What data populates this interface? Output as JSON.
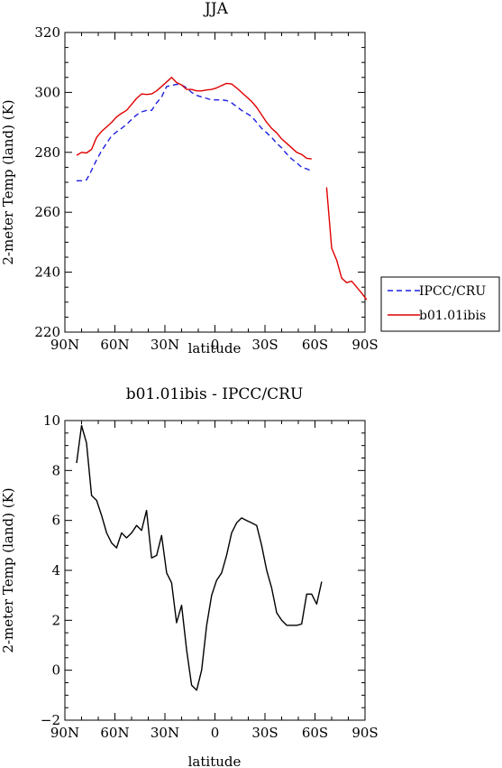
{
  "chart_data": [
    {
      "type": "line",
      "title": "JJA",
      "xlabel": "latitude",
      "ylabel": "2-meter Temp (land) (K)",
      "xlim": [
        90,
        -90
      ],
      "ylim": [
        220,
        320
      ],
      "x_ticks": [
        90,
        60,
        30,
        0,
        -30,
        -60,
        -90
      ],
      "x_tick_labels": [
        "90N",
        "60N",
        "30N",
        "0",
        "30S",
        "60S",
        "90S"
      ],
      "y_ticks": [
        220,
        240,
        260,
        280,
        300,
        320
      ],
      "y_tick_labels": [
        "220",
        "240",
        "260",
        "280",
        "300",
        "320"
      ],
      "legend_position": "right",
      "series": [
        {
          "name": "IPCC/CRU",
          "color": "#1f1fe0",
          "dash": "dashed",
          "segments": [
            [
              [
                83,
                270.5
              ],
              [
                80,
                270.5
              ],
              [
                77,
                270.8
              ],
              [
                74,
                274
              ],
              [
                71,
                277.5
              ],
              [
                68,
                280.5
              ],
              [
                65,
                283
              ],
              [
                62,
                285.5
              ],
              [
                59,
                286.8
              ],
              [
                56,
                288
              ],
              [
                53,
                289.3
              ],
              [
                50,
                291
              ],
              [
                47,
                292.5
              ],
              [
                44,
                293.5
              ],
              [
                41,
                294
              ],
              [
                38,
                294
              ],
              [
                35,
                296.5
              ],
              [
                32,
                298.5
              ],
              [
                29,
                302
              ],
              [
                26,
                302.3
              ],
              [
                23,
                302.7
              ],
              [
                20,
                302.5
              ],
              [
                17,
                301.5
              ],
              [
                14,
                300
              ],
              [
                11,
                299
              ],
              [
                8,
                298.5
              ],
              [
                5,
                298
              ],
              [
                2,
                297.5
              ],
              [
                -1,
                297.5
              ],
              [
                -4,
                297.5
              ],
              [
                -7,
                297.3
              ],
              [
                -10,
                296.5
              ],
              [
                -13,
                295.3
              ],
              [
                -16,
                294
              ],
              [
                -19,
                293
              ],
              [
                -22,
                292
              ],
              [
                -25,
                290
              ],
              [
                -28,
                288
              ],
              [
                -31,
                286.5
              ],
              [
                -34,
                285
              ],
              [
                -37,
                283
              ],
              [
                -40,
                281.5
              ],
              [
                -43,
                279.5
              ],
              [
                -46,
                277.8
              ],
              [
                -49,
                276.5
              ],
              [
                -52,
                275
              ],
              [
                -55,
                274.5
              ],
              [
                -58,
                273.8
              ]
            ]
          ]
        },
        {
          "name": "b01.01ibis",
          "color": "#e00000",
          "dash": "solid",
          "segments": [
            [
              [
                83,
                279
              ],
              [
                80,
                280
              ],
              [
                77,
                279.8
              ],
              [
                74,
                281
              ],
              [
                71,
                285
              ],
              [
                68,
                287
              ],
              [
                65,
                288.5
              ],
              [
                62,
                290
              ],
              [
                59,
                291.8
              ],
              [
                56,
                293
              ],
              [
                53,
                294
              ],
              [
                50,
                296
              ],
              [
                47,
                298
              ],
              [
                44,
                299.5
              ],
              [
                41,
                299.3
              ],
              [
                38,
                299.5
              ],
              [
                35,
                300.5
              ],
              [
                32,
                302
              ],
              [
                29,
                303.5
              ],
              [
                26,
                305
              ],
              [
                23,
                303.3
              ],
              [
                20,
                302.5
              ],
              [
                17,
                301
              ],
              [
                14,
                301
              ],
              [
                11,
                300.5
              ],
              [
                8,
                300.5
              ],
              [
                5,
                300.8
              ],
              [
                2,
                301
              ],
              [
                -1,
                301.5
              ],
              [
                -4,
                302.3
              ],
              [
                -7,
                303
              ],
              [
                -10,
                302.8
              ],
              [
                -13,
                301.5
              ],
              [
                -16,
                300
              ],
              [
                -19,
                298.5
              ],
              [
                -22,
                297
              ],
              [
                -25,
                295
              ],
              [
                -28,
                292.5
              ],
              [
                -31,
                290
              ],
              [
                -34,
                288
              ],
              [
                -37,
                286.5
              ],
              [
                -40,
                284.5
              ],
              [
                -43,
                283
              ],
              [
                -46,
                281.5
              ],
              [
                -49,
                280
              ],
              [
                -52,
                279.3
              ],
              [
                -55,
                278
              ],
              [
                -58,
                277.8
              ]
            ],
            [
              [
                -67,
                268.3
              ],
              [
                -70,
                248
              ],
              [
                -73,
                244
              ],
              [
                -76,
                238
              ],
              [
                -79,
                236.5
              ],
              [
                -82,
                237
              ],
              [
                -85,
                235
              ],
              [
                -88,
                233
              ],
              [
                -91,
                230.8
              ]
            ]
          ]
        }
      ]
    },
    {
      "type": "line",
      "title": "b01.01ibis - IPCC/CRU",
      "xlabel": "latitude",
      "ylabel": "2-meter Temp (land) (K)",
      "xlim": [
        90,
        -90
      ],
      "ylim": [
        -2,
        10
      ],
      "x_ticks": [
        90,
        60,
        30,
        0,
        -30,
        -60,
        -90
      ],
      "x_tick_labels": [
        "90N",
        "60N",
        "30N",
        "0",
        "30S",
        "60S",
        "90S"
      ],
      "y_ticks": [
        -2,
        0,
        2,
        4,
        6,
        8,
        10
      ],
      "y_tick_labels": [
        "−2",
        "0",
        "2",
        "4",
        "6",
        "8",
        "10"
      ],
      "series": [
        {
          "color": "#000000",
          "dash": "solid",
          "segments": [
            [
              [
                83,
                8.3
              ],
              [
                80,
                9.8
              ],
              [
                77,
                9.1
              ],
              [
                74,
                7.0
              ],
              [
                71,
                6.8
              ],
              [
                68,
                6.2
              ],
              [
                65,
                5.5
              ],
              [
                62,
                5.1
              ],
              [
                59,
                4.9
              ],
              [
                56,
                5.5
              ],
              [
                53,
                5.3
              ],
              [
                50,
                5.5
              ],
              [
                47,
                5.8
              ],
              [
                44,
                5.6
              ],
              [
                41,
                6.4
              ],
              [
                38,
                4.5
              ],
              [
                35,
                4.6
              ],
              [
                32,
                5.4
              ],
              [
                29,
                3.9
              ],
              [
                26,
                3.5
              ],
              [
                23,
                1.9
              ],
              [
                20,
                2.6
              ],
              [
                17,
                0.8
              ],
              [
                14,
                -0.6
              ],
              [
                11,
                -0.8
              ],
              [
                8,
                0
              ],
              [
                5,
                1.8
              ],
              [
                2,
                3.0
              ],
              [
                -1,
                3.6
              ],
              [
                -4,
                3.9
              ],
              [
                -7,
                4.6
              ],
              [
                -10,
                5.5
              ],
              [
                -13,
                5.9
              ],
              [
                -16,
                6.1
              ],
              [
                -19,
                6.0
              ],
              [
                -22,
                5.9
              ],
              [
                -25,
                5.8
              ],
              [
                -28,
                5.0
              ],
              [
                -31,
                4.0
              ],
              [
                -34,
                3.3
              ],
              [
                -37,
                2.3
              ],
              [
                -40,
                2.0
              ],
              [
                -43,
                1.8
              ],
              [
                -46,
                1.8
              ],
              [
                -49,
                1.8
              ],
              [
                -52,
                1.85
              ],
              [
                -55,
                3.05
              ],
              [
                -58,
                3.05
              ],
              [
                -61,
                2.65
              ],
              [
                -64,
                3.55
              ]
            ]
          ]
        }
      ]
    }
  ]
}
